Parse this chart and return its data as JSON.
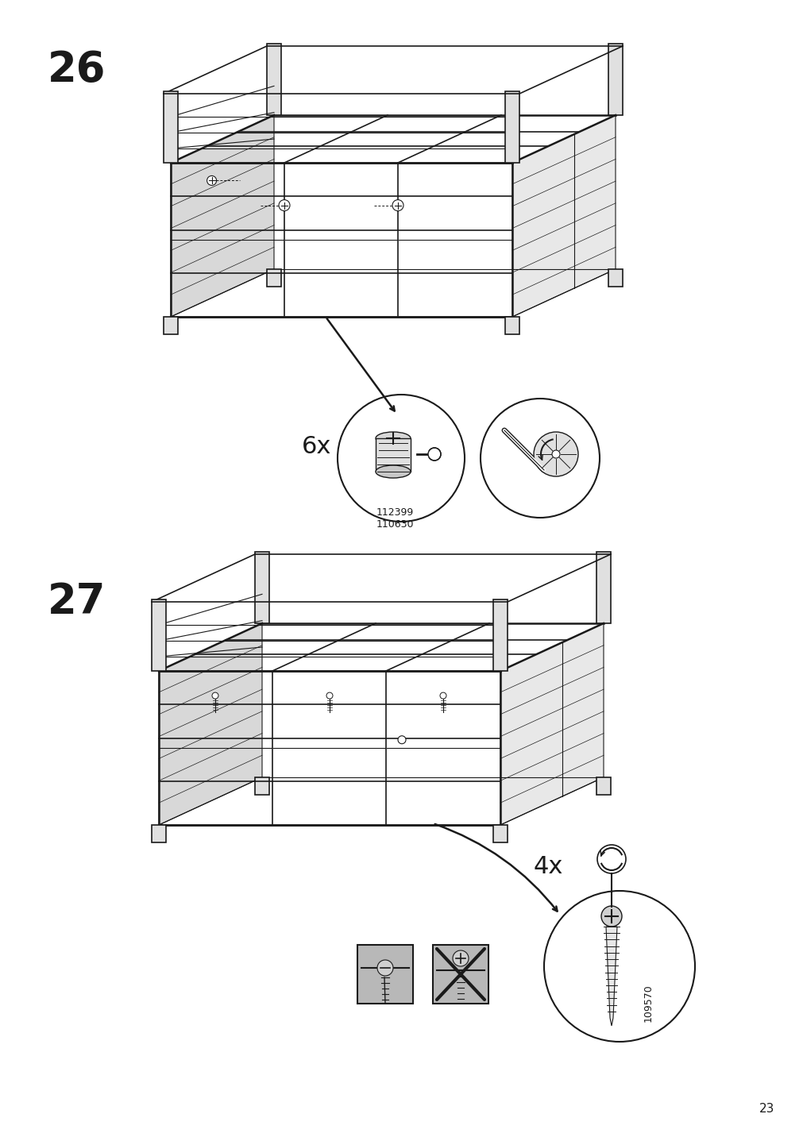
{
  "page_number": "23",
  "step26_number": "26",
  "step27_number": "27",
  "background_color": "#ffffff",
  "line_color": "#1a1a1a",
  "step26_6x_label": "6x",
  "step26_part_numbers": "112399\n110630",
  "step27_4x_label": "4x",
  "step27_part_number": "109570",
  "title_fontsize": 38,
  "label_fontsize": 20,
  "small_fontsize": 9,
  "page_num_fontsize": 11
}
